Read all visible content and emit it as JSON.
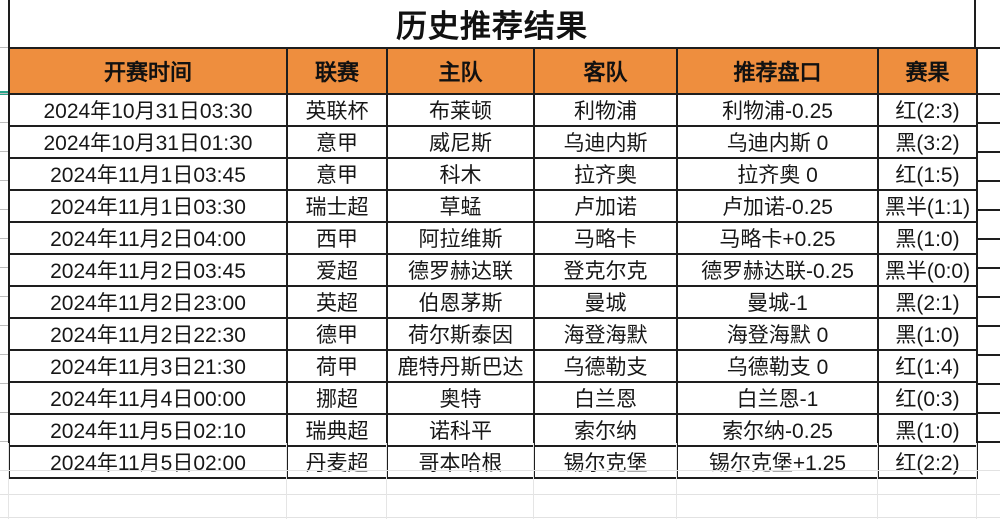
{
  "title": "历史推荐结果",
  "colors": {
    "header_bg": "#ee8e3e",
    "result_red": "#b5342c",
    "accent_teal": "#27a58b"
  },
  "table": {
    "headers": [
      "开赛时间",
      "联赛",
      "主队",
      "客队",
      "推荐盘口",
      "赛果"
    ],
    "rows": [
      {
        "time": "2024年10月31日03:30",
        "league": "英联杯",
        "home": "布莱顿",
        "away": "利物浦",
        "handicap": "利物浦-0.25",
        "result": "红(2:3)",
        "result_color": "red"
      },
      {
        "time": "2024年10月31日01:30",
        "league": "意甲",
        "home": "威尼斯",
        "away": "乌迪内斯",
        "handicap": "乌迪内斯 0",
        "result": "黑(3:2)",
        "result_color": "black"
      },
      {
        "time": "2024年11月1日03:45",
        "league": "意甲",
        "home": "科木",
        "away": "拉齐奥",
        "handicap": "拉齐奥 0",
        "result": "红(1:5)",
        "result_color": "red"
      },
      {
        "time": "2024年11月1日03:30",
        "league": "瑞士超",
        "home": "草蜢",
        "away": "卢加诺",
        "handicap": "卢加诺-0.25",
        "result": "黑半(1:1)",
        "result_color": "black"
      },
      {
        "time": "2024年11月2日04:00",
        "league": "西甲",
        "home": "阿拉维斯",
        "away": "马略卡",
        "handicap": "马略卡+0.25",
        "result": "黑(1:0)",
        "result_color": "black"
      },
      {
        "time": "2024年11月2日03:45",
        "league": "爱超",
        "home": "德罗赫达联",
        "away": "登克尔克",
        "handicap": "德罗赫达联-0.25",
        "result": "黑半(0:0)",
        "result_color": "black"
      },
      {
        "time": "2024年11月2日23:00",
        "league": "英超",
        "home": "伯恩茅斯",
        "away": "曼城",
        "handicap": "曼城-1",
        "result": "黑(2:1)",
        "result_color": "black"
      },
      {
        "time": "2024年11月2日22:30",
        "league": "德甲",
        "home": "荷尔斯泰因",
        "away": "海登海默",
        "handicap": "海登海默 0",
        "result": "黑(1:0)",
        "result_color": "black"
      },
      {
        "time": "2024年11月3日21:30",
        "league": "荷甲",
        "home": "鹿特丹斯巴达",
        "away": "乌德勒支",
        "handicap": "乌德勒支 0",
        "result": "红(1:4)",
        "result_color": "red"
      },
      {
        "time": "2024年11月4日00:00",
        "league": "挪超",
        "home": "奥特",
        "away": "白兰恩",
        "handicap": "白兰恩-1",
        "result": "红(0:3)",
        "result_color": "red"
      },
      {
        "time": "2024年11月5日02:10",
        "league": "瑞典超",
        "home": "诺科平",
        "away": "索尔纳",
        "handicap": "索尔纳-0.25",
        "result": "黑(1:0)",
        "result_color": "black"
      },
      {
        "time": "2024年11月5日02:00",
        "league": "丹麦超",
        "home": "哥本哈根",
        "away": "锡尔克堡",
        "handicap": "锡尔克堡+1.25",
        "result": "红(2:2)",
        "result_color": "red"
      }
    ]
  }
}
